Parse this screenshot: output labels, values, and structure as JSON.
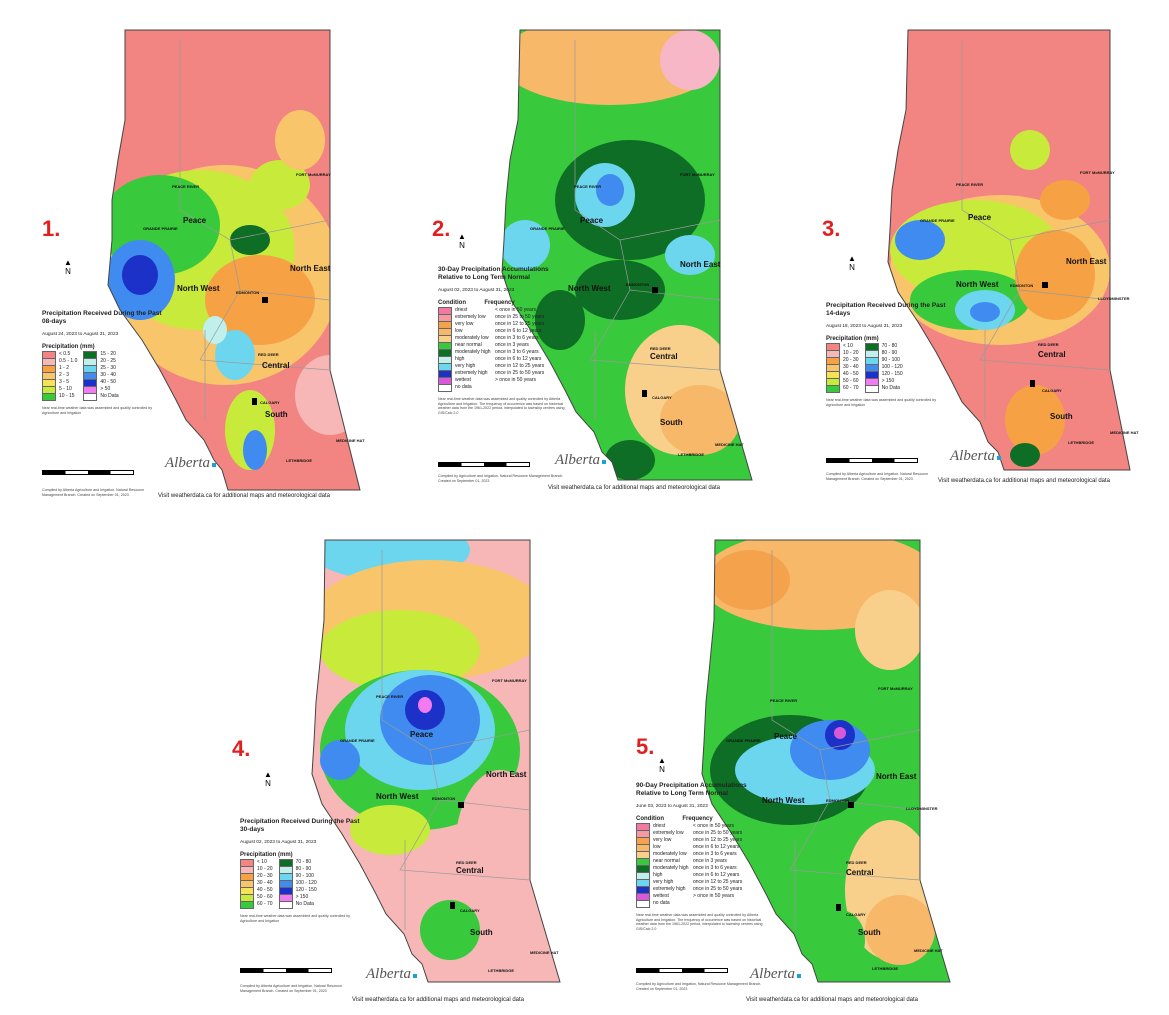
{
  "footer_text": "Visit weatherdata.ca for additional maps and meteorological data",
  "logo_text": "Alberta",
  "north_arrow": "N",
  "region_labels": [
    "Peace",
    "North West",
    "North East",
    "Central",
    "South"
  ],
  "city_labels": [
    "PEACE RIVER",
    "GRANDE PRAIRIE",
    "FORT McMURRAY",
    "EDMONTON",
    "RED DEER",
    "CALGARY",
    "LETHBRIDGE",
    "MEDICINE HAT",
    "LLOYDMINSTER"
  ],
  "panels": [
    {
      "number": "1.",
      "title": "Precipitation Received During the Past 08-days",
      "dates": "August 24, 2023 to August 31, 2023",
      "legend_header": "Precipitation (mm)",
      "legend": [
        {
          "label": "< 0.5",
          "color": "#f28482"
        },
        {
          "label": "0.5 - 1.0",
          "color": "#f7b7b6"
        },
        {
          "label": "1 - 2",
          "color": "#f7a145"
        },
        {
          "label": "2 - 3",
          "color": "#f9c56b"
        },
        {
          "label": "3 - 5",
          "color": "#f6e257"
        },
        {
          "label": "5 - 10",
          "color": "#c8ea3a"
        },
        {
          "label": "10 - 15",
          "color": "#38c93c"
        },
        {
          "label": "15 - 20",
          "color": "#0e6e25"
        },
        {
          "label": "20 - 25",
          "color": "#bff0ec"
        },
        {
          "label": "25 - 30",
          "color": "#6cd6ef"
        },
        {
          "label": "30 - 40",
          "color": "#3f8bf0"
        },
        {
          "label": "40 - 50",
          "color": "#1b31c8"
        },
        {
          "label": "> 50",
          "color": "#f27af2"
        },
        {
          "label": "No Data",
          "color": "#ffffff"
        }
      ],
      "note": "Near real-time weather data was assembled and quality controlled by Agriculture and Irrigation",
      "credit": "Compiled by Alberta Agriculture and Irrigation, Natural Resource Management Branch. Created on September 01, 2023"
    },
    {
      "number": "2.",
      "title": "30-Day Precipitation Accumulations Relative to Long Term Normal",
      "dates": "August 02, 2023 to August 31, 2023",
      "legend_header": "Condition",
      "legend_header2": "Frequency",
      "legend": [
        {
          "label": "driest",
          "freq": "< once in 50 years",
          "color": "#f27aa2"
        },
        {
          "label": "extremely low",
          "freq": "once in 25 to 50 years",
          "color": "#f79aa0"
        },
        {
          "label": "very low",
          "freq": "once in 12 to 25 years",
          "color": "#f5a24c"
        },
        {
          "label": "low",
          "freq": "once in 6 to 12 years",
          "color": "#f7b86a"
        },
        {
          "label": "moderately low",
          "freq": "once in 3 to 6 years",
          "color": "#f9d08b"
        },
        {
          "label": "near normal",
          "freq": "once in 3 years",
          "color": "#38c93c"
        },
        {
          "label": "moderately high",
          "freq": "once in 3 to 6 years",
          "color": "#0e6e25"
        },
        {
          "label": "high",
          "freq": "once in 6 to 12 years",
          "color": "#bff0ec"
        },
        {
          "label": "very high",
          "freq": "once in 12 to 25 years",
          "color": "#6cd6ef"
        },
        {
          "label": "extremely high",
          "freq": "once in 25 to 50 years",
          "color": "#1b31c8"
        },
        {
          "label": "wettest",
          "freq": "> once in 50 years",
          "color": "#d95ad9"
        },
        {
          "label": "no data",
          "freq": "",
          "color": "#ffffff"
        }
      ],
      "note": "Near real-time weather data was assembled and quality controlled by Alberta Agriculture and Irrigation. The frequency of occurrence was based on historical weather data from the 1961-2022 period, interpolated to township centres using GIS/Calc 2.0",
      "credit": "Compiled by Agriculture and Irrigation, Natural Resource Management Branch. Created on September 01, 2023"
    },
    {
      "number": "3.",
      "title": "Precipitation Received During the Past 14-days",
      "dates": "August 18, 2023 to August 31, 2023",
      "legend_header": "Precipitation (mm)",
      "legend": [
        {
          "label": "< 10",
          "color": "#f28482"
        },
        {
          "label": "10 - 20",
          "color": "#f7b7b6"
        },
        {
          "label": "20 - 30",
          "color": "#f7a145"
        },
        {
          "label": "30 - 40",
          "color": "#f9c56b"
        },
        {
          "label": "40 - 50",
          "color": "#f6e257"
        },
        {
          "label": "50 - 60",
          "color": "#c8ea3a"
        },
        {
          "label": "60 - 70",
          "color": "#38c93c"
        },
        {
          "label": "70 - 80",
          "color": "#0e6e25"
        },
        {
          "label": "80 - 90",
          "color": "#bff0ec"
        },
        {
          "label": "90 - 100",
          "color": "#6cd6ef"
        },
        {
          "label": "100 - 120",
          "color": "#3f8bf0"
        },
        {
          "label": "120 - 150",
          "color": "#1b31c8"
        },
        {
          "label": "> 150",
          "color": "#f27af2"
        },
        {
          "label": "No Data",
          "color": "#ffffff"
        }
      ],
      "note": "Near real-time weather data was assembled and quality controlled by Agriculture and Irrigation",
      "credit": "Compiled by Alberta Agriculture and Irrigation, Natural Resource Management Branch. Created on September 01, 2023"
    },
    {
      "number": "4.",
      "title": "Precipitation Received During the Past 30-days",
      "dates": "August 02, 2023 to August 31, 2023",
      "legend_header": "Precipitation (mm)",
      "legend": [
        {
          "label": "< 10",
          "color": "#f28482"
        },
        {
          "label": "10 - 20",
          "color": "#f7b7b6"
        },
        {
          "label": "20 - 30",
          "color": "#f7a145"
        },
        {
          "label": "30 - 40",
          "color": "#f9c56b"
        },
        {
          "label": "40 - 50",
          "color": "#f6e257"
        },
        {
          "label": "50 - 60",
          "color": "#c8ea3a"
        },
        {
          "label": "60 - 70",
          "color": "#38c93c"
        },
        {
          "label": "70 - 80",
          "color": "#0e6e25"
        },
        {
          "label": "80 - 90",
          "color": "#bff0ec"
        },
        {
          "label": "90 - 100",
          "color": "#6cd6ef"
        },
        {
          "label": "100 - 120",
          "color": "#3f8bf0"
        },
        {
          "label": "120 - 150",
          "color": "#1b31c8"
        },
        {
          "label": "> 150",
          "color": "#f27af2"
        },
        {
          "label": "No Data",
          "color": "#ffffff"
        }
      ],
      "note": "Near real-time weather data was assembled and quality controlled by Agriculture and Irrigation",
      "credit": "Compiled by Alberta Agriculture and Irrigation, Natural Resource Management Branch. Created on September 01, 2023"
    },
    {
      "number": "5.",
      "title": "90-Day Precipitation Accumulations Relative to Long Term Normal",
      "dates": "June 03, 2023 to August 31, 2023",
      "legend_header": "Condition",
      "legend_header2": "Frequency",
      "legend": [
        {
          "label": "driest",
          "freq": "< once in 50 years",
          "color": "#f27aa2"
        },
        {
          "label": "extremely low",
          "freq": "once in 25 to 50 years",
          "color": "#f79aa0"
        },
        {
          "label": "very low",
          "freq": "once in 12 to 25 years",
          "color": "#f5a24c"
        },
        {
          "label": "low",
          "freq": "once in 6 to 12 years",
          "color": "#f7b86a"
        },
        {
          "label": "moderately low",
          "freq": "once in 3 to 6 years",
          "color": "#f9d08b"
        },
        {
          "label": "near normal",
          "freq": "once in 3 years",
          "color": "#38c93c"
        },
        {
          "label": "moderately high",
          "freq": "once in 3 to 6 years",
          "color": "#0e6e25"
        },
        {
          "label": "high",
          "freq": "once in 6 to 12 years",
          "color": "#bff0ec"
        },
        {
          "label": "very high",
          "freq": "once in 12 to 25 years",
          "color": "#6cd6ef"
        },
        {
          "label": "extremely high",
          "freq": "once in 25 to 50 years",
          "color": "#1b31c8"
        },
        {
          "label": "wettest",
          "freq": "> once in 50 years",
          "color": "#d95ad9"
        },
        {
          "label": "no data",
          "freq": "",
          "color": "#ffffff"
        }
      ],
      "note": "Near real-time weather data was assembled and quality controlled by Alberta Agriculture and Irrigation. The frequency of occurrence was based on historical weather data from the 1961-2022 period, interpolated to township centres using GIS/Calc 2.0",
      "credit": "Compiled by Agriculture and Irrigation, Natural Resource Management Branch. Created on September 01, 2023"
    }
  ]
}
